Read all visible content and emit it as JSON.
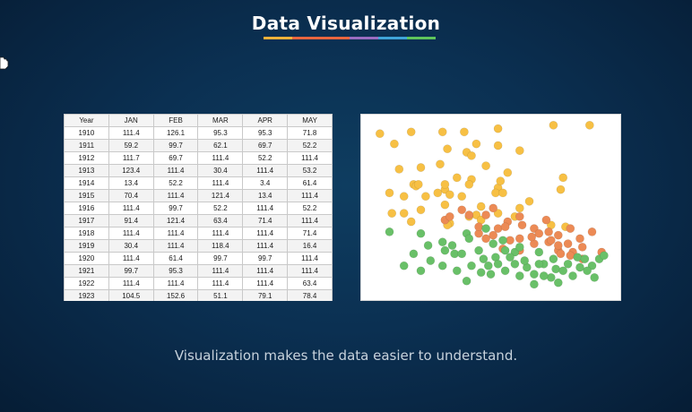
{
  "header": {
    "title": "Data Visualization",
    "underline_colors": [
      "#f3b23a",
      "#e9663f",
      "#e9663f",
      "#9a6cc1",
      "#3fa4d9",
      "#5ec55b"
    ]
  },
  "table": {
    "headers": [
      "Year",
      "JAN",
      "FEB",
      "MAR",
      "APR",
      "MAY"
    ],
    "rows": [
      [
        "1910",
        "111.4",
        "126.1",
        "95.3",
        "95.3",
        "71.8"
      ],
      [
        "1911",
        "59.2",
        "99.7",
        "62.1",
        "69.7",
        "52.2"
      ],
      [
        "1912",
        "111.7",
        "69.7",
        "111.4",
        "52.2",
        "111.4"
      ],
      [
        "1913",
        "123.4",
        "111.4",
        "30.4",
        "111.4",
        "53.2"
      ],
      [
        "1914",
        "13.4",
        "52.2",
        "111.4",
        "3.4",
        "61.4"
      ],
      [
        "1915",
        "70.4",
        "111.4",
        "121.4",
        "13.4",
        "111.4"
      ],
      [
        "1916",
        "111.4",
        "99.7",
        "52.2",
        "111.4",
        "52.2"
      ],
      [
        "1917",
        "91.4",
        "121.4",
        "63.4",
        "71.4",
        "111.4"
      ],
      [
        "1918",
        "111.4",
        "111.4",
        "111.4",
        "111.4",
        "71.4"
      ],
      [
        "1919",
        "30.4",
        "111.4",
        "118.4",
        "111.4",
        "16.4"
      ],
      [
        "1920",
        "111.4",
        "61.4",
        "99.7",
        "99.7",
        "111.4"
      ],
      [
        "1921",
        "99.7",
        "95.3",
        "111.4",
        "111.4",
        "111.4"
      ],
      [
        "1922",
        "111.4",
        "111.4",
        "111.4",
        "111.4",
        "63.4"
      ],
      [
        "1923",
        "104.5",
        "152.6",
        "51.1",
        "79.1",
        "78.4"
      ]
    ]
  },
  "chart_data": {
    "type": "scatter",
    "title": "",
    "xlabel": "",
    "ylabel": "",
    "xlim": [
      0,
      100
    ],
    "ylim": [
      0,
      100
    ],
    "grid": false,
    "series": [
      {
        "color": "#f7c044",
        "points": [
          [
            4,
            93
          ],
          [
            10,
            87
          ],
          [
            17,
            94
          ],
          [
            30,
            94
          ],
          [
            40,
            82
          ],
          [
            44,
            87
          ],
          [
            42,
            80
          ],
          [
            53,
            86
          ],
          [
            62,
            83
          ],
          [
            32,
            84
          ],
          [
            12,
            72
          ],
          [
            21,
            73
          ],
          [
            29,
            75
          ],
          [
            36,
            67
          ],
          [
            42,
            66
          ],
          [
            18,
            63
          ],
          [
            48,
            74
          ],
          [
            57,
            70
          ],
          [
            53,
            61
          ],
          [
            8,
            58
          ],
          [
            14,
            56
          ],
          [
            23,
            56
          ],
          [
            31,
            60
          ],
          [
            38,
            56
          ],
          [
            52,
            58
          ],
          [
            21,
            48
          ],
          [
            31,
            51
          ],
          [
            33,
            40
          ],
          [
            44,
            45
          ],
          [
            53,
            46
          ],
          [
            60,
            44
          ],
          [
            14,
            46
          ],
          [
            41,
            44
          ],
          [
            46,
            50
          ],
          [
            54,
            65
          ],
          [
            79,
            60
          ],
          [
            66,
            53
          ],
          [
            75,
            39
          ],
          [
            32,
            39
          ],
          [
            76,
            98
          ],
          [
            80,
            67
          ],
          [
            9,
            46
          ],
          [
            28,
            58
          ],
          [
            19,
            62
          ],
          [
            17,
            41
          ],
          [
            31,
            63
          ],
          [
            41,
            63
          ],
          [
            33,
            57
          ],
          [
            20,
            63
          ],
          [
            91,
            98
          ],
          [
            53,
            96
          ],
          [
            39,
            94
          ],
          [
            81,
            38
          ],
          [
            46,
            42
          ],
          [
            55,
            58
          ],
          [
            62,
            49
          ]
        ]
      },
      {
        "color": "#ec8a55",
        "points": [
          [
            31,
            42
          ],
          [
            41,
            45
          ],
          [
            48,
            45
          ],
          [
            53,
            37
          ],
          [
            57,
            41
          ],
          [
            63,
            39
          ],
          [
            68,
            37
          ],
          [
            74,
            35
          ],
          [
            78,
            33
          ],
          [
            62,
            44
          ],
          [
            73,
            42
          ],
          [
            83,
            37
          ],
          [
            68,
            28
          ],
          [
            82,
            28
          ],
          [
            87,
            31
          ],
          [
            74,
            29
          ],
          [
            78,
            24
          ],
          [
            84,
            23
          ],
          [
            88,
            26
          ],
          [
            62,
            31
          ],
          [
            58,
            30
          ],
          [
            51,
            33
          ],
          [
            45,
            34
          ],
          [
            48,
            31
          ],
          [
            70,
            34
          ],
          [
            78,
            27
          ],
          [
            83,
            21
          ],
          [
            55,
            25
          ],
          [
            45,
            38
          ],
          [
            67,
            32
          ],
          [
            79,
            22
          ],
          [
            88,
            19
          ],
          [
            96,
            23
          ],
          [
            92,
            35
          ],
          [
            33,
            44
          ],
          [
            38,
            48
          ],
          [
            51,
            49
          ],
          [
            56,
            38
          ],
          [
            75,
            30
          ],
          [
            62,
            24
          ]
        ]
      },
      {
        "color": "#69c068",
        "points": [
          [
            8,
            35
          ],
          [
            21,
            34
          ],
          [
            40,
            34
          ],
          [
            48,
            37
          ],
          [
            30,
            29
          ],
          [
            35,
            22
          ],
          [
            41,
            31
          ],
          [
            51,
            28
          ],
          [
            55,
            30
          ],
          [
            47,
            19
          ],
          [
            60,
            23
          ],
          [
            70,
            23
          ],
          [
            65,
            14
          ],
          [
            68,
            10
          ],
          [
            72,
            16
          ],
          [
            77,
            13
          ],
          [
            82,
            16
          ],
          [
            86,
            20
          ],
          [
            89,
            19
          ],
          [
            92,
            15
          ],
          [
            95,
            19
          ],
          [
            90,
            12
          ],
          [
            84,
            9
          ],
          [
            78,
            5
          ],
          [
            75,
            8
          ],
          [
            72,
            9
          ],
          [
            68,
            4
          ],
          [
            62,
            9
          ],
          [
            56,
            12
          ],
          [
            50,
            10
          ],
          [
            46,
            11
          ],
          [
            40,
            6
          ],
          [
            36,
            12
          ],
          [
            30,
            15
          ],
          [
            25,
            18
          ],
          [
            18,
            22
          ],
          [
            14,
            15
          ],
          [
            24,
            27
          ],
          [
            31,
            24
          ],
          [
            38,
            22
          ],
          [
            45,
            24
          ],
          [
            52,
            20
          ],
          [
            58,
            20
          ],
          [
            62,
            26
          ],
          [
            56,
            24
          ],
          [
            64,
            18
          ],
          [
            70,
            16
          ],
          [
            76,
            19
          ],
          [
            80,
            12
          ],
          [
            87,
            14
          ],
          [
            93,
            8
          ],
          [
            97,
            21
          ],
          [
            60,
            16
          ],
          [
            53,
            16
          ],
          [
            42,
            15
          ],
          [
            34,
            27
          ],
          [
            21,
            12
          ],
          [
            49,
            15
          ]
        ]
      }
    ]
  },
  "caption": "Visualization makes the data easier to understand."
}
